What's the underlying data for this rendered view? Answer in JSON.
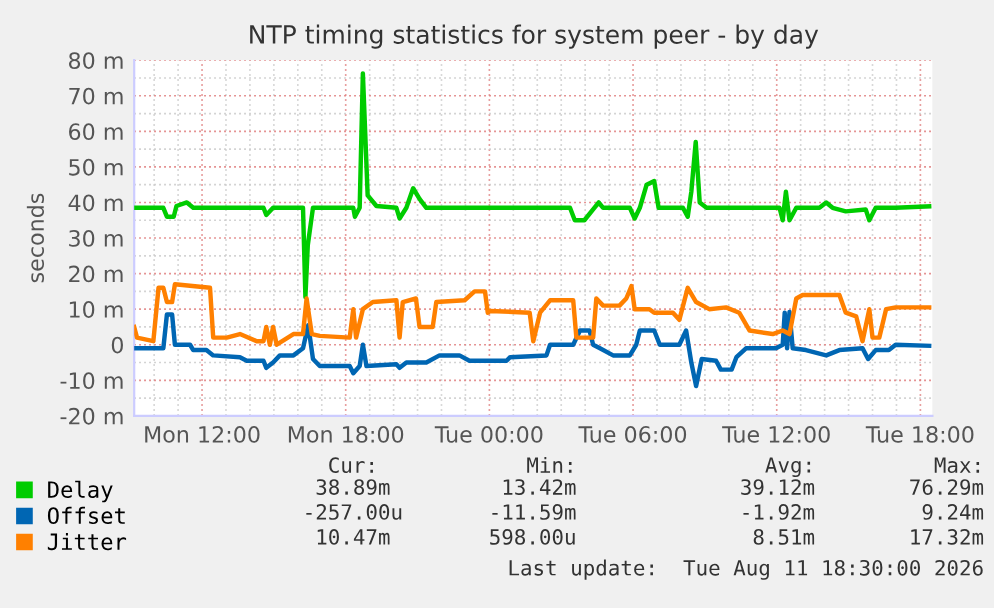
{
  "chart_data": {
    "type": "line",
    "title": "NTP timing statistics for system peer - by day",
    "ylabel": "seconds",
    "xlim": [
      "2026-08-10T09:10",
      "2026-08-11T18:30"
    ],
    "xticks": [
      {
        "value": "2026-08-10T12:00",
        "label": "Mon 12:00"
      },
      {
        "value": "2026-08-10T18:00",
        "label": "Mon 18:00"
      },
      {
        "value": "2026-08-11T00:00",
        "label": "Tue 00:00"
      },
      {
        "value": "2026-08-11T06:00",
        "label": "Tue 06:00"
      },
      {
        "value": "2026-08-11T12:00",
        "label": "Tue 12:00"
      },
      {
        "value": "2026-08-11T18:00",
        "label": "Tue 18:00"
      }
    ],
    "ylim": [
      -20,
      80
    ],
    "yticks": [
      {
        "value": -20,
        "label": "-20 m"
      },
      {
        "value": -10,
        "label": "-10 m"
      },
      0,
      {
        "value": 10,
        "label": "10 m"
      },
      {
        "value": 20,
        "label": "20 m"
      },
      {
        "value": 30,
        "label": "30 m"
      },
      {
        "value": 40,
        "label": "40 m"
      },
      {
        "value": 50,
        "label": "50 m"
      },
      {
        "value": 60,
        "label": "60 m"
      },
      {
        "value": 70,
        "label": "70 m"
      },
      {
        "value": 80,
        "label": "80 m"
      }
    ],
    "grid": true,
    "legend": "bottom",
    "marker": "none",
    "line_style": "solid",
    "series": [
      {
        "name": "Delay",
        "color": "#00cc00",
        "x": [
          "2026-08-10T09:10",
          "2026-08-10T10:23",
          "2026-08-10T10:32",
          "2026-08-10T10:49",
          "2026-08-10T10:56",
          "2026-08-10T11:22",
          "2026-08-10T11:38",
          "2026-08-10T14:34",
          "2026-08-10T14:41",
          "2026-08-10T14:58",
          "2026-08-10T16:13",
          "2026-08-10T16:19",
          "2026-08-10T16:25",
          "2026-08-10T16:38",
          "2026-08-10T18:19",
          "2026-08-10T18:23",
          "2026-08-10T18:35",
          "2026-08-10T18:43",
          "2026-08-10T18:55",
          "2026-08-10T19:17",
          "2026-08-10T20:07",
          "2026-08-10T20:15",
          "2026-08-10T20:32",
          "2026-08-10T20:49",
          "2026-08-10T21:05",
          "2026-08-10T21:22",
          "2026-08-11T00:25",
          "2026-08-11T03:22",
          "2026-08-11T03:34",
          "2026-08-11T03:58",
          "2026-08-11T04:23",
          "2026-08-11T04:34",
          "2026-08-11T04:45",
          "2026-08-11T05:52",
          "2026-08-11T06:04",
          "2026-08-11T06:17",
          "2026-08-11T06:34",
          "2026-08-11T06:53",
          "2026-08-11T07:04",
          "2026-08-11T08:05",
          "2026-08-11T08:17",
          "2026-08-11T08:26",
          "2026-08-11T08:37",
          "2026-08-11T08:47",
          "2026-08-11T09:04",
          "2026-08-11T12:07",
          "2026-08-11T12:15",
          "2026-08-11T12:23",
          "2026-08-11T12:32",
          "2026-08-11T12:49",
          "2026-08-11T13:47",
          "2026-08-11T14:04",
          "2026-08-11T14:20",
          "2026-08-11T14:53",
          "2026-08-11T15:43",
          "2026-08-11T15:52",
          "2026-08-11T16:08",
          "2026-08-11T16:58",
          "2026-08-11T18:22"
        ],
        "values": [
          38.5,
          38.5,
          36,
          36,
          39,
          40,
          38.5,
          38.5,
          36.5,
          38.5,
          38.5,
          13.4,
          28,
          38.5,
          38.5,
          36,
          38.5,
          76.3,
          42,
          39,
          38.5,
          35.5,
          38.5,
          44,
          41,
          38.5,
          38.5,
          38.5,
          35,
          35,
          38.5,
          40,
          38.5,
          38.5,
          35.5,
          38.5,
          45,
          46,
          38.5,
          38.5,
          36,
          43,
          57,
          40,
          38.5,
          38.5,
          35,
          43,
          35,
          38.5,
          38.5,
          40,
          38.5,
          37.5,
          38,
          35,
          38.5,
          38.5,
          38.9
        ]
      },
      {
        "name": "Offset",
        "color": "#0066b3",
        "x": [
          "2026-08-10T09:10",
          "2026-08-10T10:23",
          "2026-08-10T10:32",
          "2026-08-10T10:45",
          "2026-08-10T10:52",
          "2026-08-10T11:30",
          "2026-08-10T11:38",
          "2026-08-10T12:11",
          "2026-08-10T12:28",
          "2026-08-10T13:35",
          "2026-08-10T13:52",
          "2026-08-10T14:34",
          "2026-08-10T14:41",
          "2026-08-10T14:58",
          "2026-08-10T15:15",
          "2026-08-10T15:49",
          "2026-08-10T16:13",
          "2026-08-10T16:26",
          "2026-08-10T16:38",
          "2026-08-10T16:55",
          "2026-08-10T18:10",
          "2026-08-10T18:19",
          "2026-08-10T18:35",
          "2026-08-10T18:43",
          "2026-08-10T18:52",
          "2026-08-10T20:07",
          "2026-08-10T20:15",
          "2026-08-10T20:32",
          "2026-08-10T21:22",
          "2026-08-10T21:55",
          "2026-08-10T22:45",
          "2026-08-10T23:10",
          "2026-08-11T00:43",
          "2026-08-11T00:52",
          "2026-08-11T02:23",
          "2026-08-11T02:32",
          "2026-08-11T03:30",
          "2026-08-11T03:47",
          "2026-08-11T04:11",
          "2026-08-11T04:20",
          "2026-08-11T04:37",
          "2026-08-11T05:10",
          "2026-08-11T05:52",
          "2026-08-11T06:08",
          "2026-08-11T06:17",
          "2026-08-11T06:53",
          "2026-08-11T07:07",
          "2026-08-11T07:56",
          "2026-08-11T08:13",
          "2026-08-11T08:26",
          "2026-08-11T08:38",
          "2026-08-11T08:52",
          "2026-08-11T09:28",
          "2026-08-11T09:40",
          "2026-08-11T10:07",
          "2026-08-11T10:19",
          "2026-08-11T10:43",
          "2026-08-11T11:58",
          "2026-08-11T12:15",
          "2026-08-11T12:20",
          "2026-08-11T12:26",
          "2026-08-11T12:32",
          "2026-08-11T12:40",
          "2026-08-11T13:13",
          "2026-08-11T14:04",
          "2026-08-11T14:37",
          "2026-08-11T15:35",
          "2026-08-11T15:49",
          "2026-08-11T16:08",
          "2026-08-11T16:41",
          "2026-08-11T16:58",
          "2026-08-11T18:22"
        ],
        "values": [
          -1,
          -1,
          8.5,
          8.5,
          0,
          0,
          -1.5,
          -1.5,
          -3,
          -3.5,
          -4.5,
          -4.5,
          -6.5,
          -5,
          -3,
          -3,
          -1,
          5.5,
          -4,
          -6,
          -6,
          -8,
          -6,
          0,
          -6,
          -5.5,
          -6.5,
          -5,
          -5,
          -3,
          -3,
          -4.5,
          -4.5,
          -3.5,
          -3,
          0,
          0,
          4,
          4,
          0,
          -1,
          -3,
          -3,
          0,
          4,
          4,
          0,
          0,
          4,
          -5,
          -11.6,
          -4,
          -4.5,
          -7,
          -7,
          -3.5,
          -1,
          -1,
          0,
          9,
          -1,
          9.2,
          -1,
          -1.5,
          -3,
          -1.5,
          -1,
          -4,
          -1.5,
          -1.5,
          0,
          -0.3
        ]
      },
      {
        "name": "Jitter",
        "color": "#ff8000",
        "x": [
          "2026-08-10T09:10",
          "2026-08-10T09:17",
          "2026-08-10T09:58",
          "2026-08-10T10:11",
          "2026-08-10T10:23",
          "2026-08-10T10:32",
          "2026-08-10T10:45",
          "2026-08-10T10:52",
          "2026-08-10T12:20",
          "2026-08-10T12:28",
          "2026-08-10T13:02",
          "2026-08-10T13:35",
          "2026-08-10T14:17",
          "2026-08-10T14:34",
          "2026-08-10T14:41",
          "2026-08-10T14:50",
          "2026-08-10T14:58",
          "2026-08-10T15:07",
          "2026-08-10T15:49",
          "2026-08-10T16:13",
          "2026-08-10T16:22",
          "2026-08-10T16:35",
          "2026-08-10T16:55",
          "2026-08-10T18:10",
          "2026-08-10T18:19",
          "2026-08-10T18:26",
          "2026-08-10T18:43",
          "2026-08-10T19:08",
          "2026-08-10T20:07",
          "2026-08-10T20:15",
          "2026-08-10T20:23",
          "2026-08-10T20:56",
          "2026-08-10T21:05",
          "2026-08-10T21:38",
          "2026-08-10T21:47",
          "2026-08-10T22:58",
          "2026-08-10T23:23",
          "2026-08-10T23:49",
          "2026-08-10T23:56",
          "2026-08-11T00:02",
          "2026-08-11T01:41",
          "2026-08-11T01:50",
          "2026-08-11T02:07",
          "2026-08-11T02:32",
          "2026-08-11T03:30",
          "2026-08-11T03:38",
          "2026-08-11T04:20",
          "2026-08-11T04:28",
          "2026-08-11T04:45",
          "2026-08-11T05:26",
          "2026-08-11T05:43",
          "2026-08-11T05:56",
          "2026-08-11T06:04",
          "2026-08-11T06:41",
          "2026-08-11T06:53",
          "2026-08-11T07:40",
          "2026-08-11T07:56",
          "2026-08-11T08:17",
          "2026-08-11T08:38",
          "2026-08-11T09:11",
          "2026-08-11T09:53",
          "2026-08-11T10:26",
          "2026-08-11T10:52",
          "2026-08-11T11:50",
          "2026-08-11T12:15",
          "2026-08-11T12:32",
          "2026-08-11T12:49",
          "2026-08-11T13:05",
          "2026-08-11T14:37",
          "2026-08-11T14:53",
          "2026-08-11T15:19",
          "2026-08-11T15:35",
          "2026-08-11T15:52",
          "2026-08-11T16:00",
          "2026-08-11T16:17",
          "2026-08-11T16:34",
          "2026-08-11T16:58",
          "2026-08-11T18:22"
        ],
        "values": [
          5,
          2,
          1,
          16,
          16,
          12,
          12,
          17,
          16,
          2,
          2,
          3,
          1,
          1,
          5,
          0,
          5,
          0,
          3,
          3,
          13,
          3,
          2.5,
          2,
          10,
          2,
          10,
          12,
          12.5,
          2,
          12,
          13,
          5,
          5,
          12,
          12.5,
          15,
          15,
          9,
          9.5,
          9,
          1,
          9,
          12.5,
          12.5,
          2,
          2,
          13,
          11,
          11,
          13,
          16.5,
          10,
          10,
          9,
          9,
          7,
          16,
          12,
          10,
          10.5,
          9,
          4,
          3,
          4,
          3,
          13,
          14,
          14,
          9,
          8,
          1,
          10,
          2,
          2,
          10,
          10.5,
          10.5
        ]
      }
    ],
    "annotations": [
      "Cur:",
      "Min:",
      "Avg:",
      "Max:",
      "38.89m",
      "13.42m",
      "39.12m",
      "76.29m",
      "-257.00u",
      "-11.59m",
      "-1.92m",
      "9.24m",
      "10.47m",
      "598.00u",
      "8.51m",
      "17.32m",
      "Last update:  Tue Aug 11 18:30:00 2026"
    ]
  }
}
